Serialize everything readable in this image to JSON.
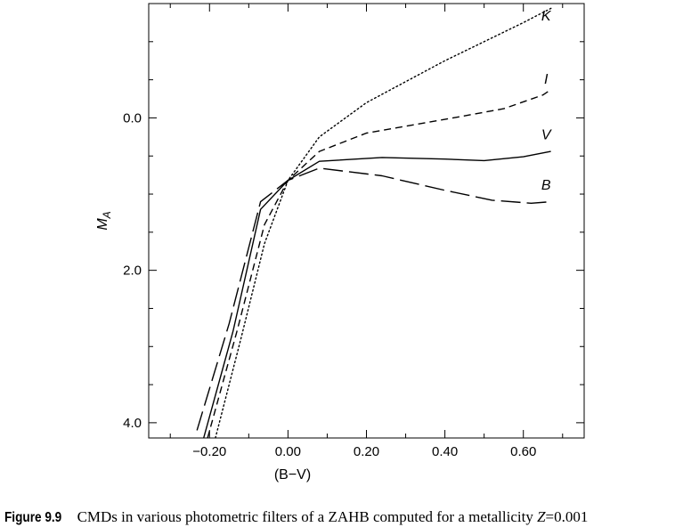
{
  "chart_data": {
    "type": "line",
    "title": "",
    "xlabel": "(B−V)",
    "ylabel": "M_A",
    "ylabel_main": "M",
    "ylabel_sub": "A",
    "xlim": [
      -0.355,
      0.755
    ],
    "ylim": [
      4.2,
      -1.5
    ],
    "y_inverted": true,
    "grid": false,
    "x_major_ticks": [
      -0.2,
      0.0,
      0.2,
      0.4,
      0.6
    ],
    "x_tick_labels": [
      "−0.20",
      "0.00",
      "0.20",
      "0.40",
      "0.60"
    ],
    "x_minor_ticks": [
      -0.3,
      -0.1,
      0.1,
      0.3,
      0.5,
      0.7
    ],
    "y_major_ticks": [
      0.0,
      2.0,
      4.0
    ],
    "y_tick_labels": [
      "0.0",
      "2.0",
      "4.0"
    ],
    "y_minor_ticks": [
      -1.0,
      -0.5,
      0.5,
      1.0,
      1.5,
      2.5,
      3.0,
      3.5
    ],
    "series": [
      {
        "name": "K",
        "style": "dotted",
        "x": [
          -0.185,
          -0.12,
          -0.06,
          0.0,
          0.08,
          0.2,
          0.4,
          0.6,
          0.675
        ],
        "y": [
          4.2,
          2.9,
          1.65,
          0.82,
          0.25,
          -0.2,
          -0.75,
          -1.25,
          -1.45
        ]
      },
      {
        "name": "I",
        "style": "short-dash",
        "x": [
          -0.205,
          -0.13,
          -0.06,
          0.0,
          0.08,
          0.2,
          0.4,
          0.55,
          0.65,
          0.67
        ],
        "y": [
          4.2,
          2.8,
          1.4,
          0.82,
          0.44,
          0.2,
          0.02,
          -0.12,
          -0.3,
          -0.37
        ]
      },
      {
        "name": "V",
        "style": "solid",
        "x": [
          -0.215,
          -0.14,
          -0.07,
          0.0,
          0.08,
          0.24,
          0.4,
          0.5,
          0.6,
          0.67
        ],
        "y": [
          4.2,
          2.8,
          1.2,
          0.82,
          0.57,
          0.52,
          0.54,
          0.56,
          0.51,
          0.44
        ]
      },
      {
        "name": "B",
        "style": "long-dash",
        "x": [
          -0.232,
          -0.15,
          -0.07,
          0.0,
          0.08,
          0.24,
          0.4,
          0.52,
          0.62,
          0.67
        ],
        "y": [
          4.1,
          2.7,
          1.1,
          0.82,
          0.66,
          0.76,
          0.95,
          1.08,
          1.12,
          1.1
        ]
      }
    ],
    "series_labels": [
      {
        "text": "K",
        "x": 0.658,
        "y": -1.28
      },
      {
        "text": "I",
        "x": 0.658,
        "y": -0.45
      },
      {
        "text": "V",
        "x": 0.658,
        "y": 0.28
      },
      {
        "text": "B",
        "x": 0.658,
        "y": 0.94
      }
    ]
  },
  "caption": {
    "label": "Figure 9.9",
    "text": "CMDs in various photometric filters of a ZAHB computed for a metallicity ",
    "math": "Z = 0.001",
    "math_var": "Z",
    "math_value": "=0.001"
  }
}
